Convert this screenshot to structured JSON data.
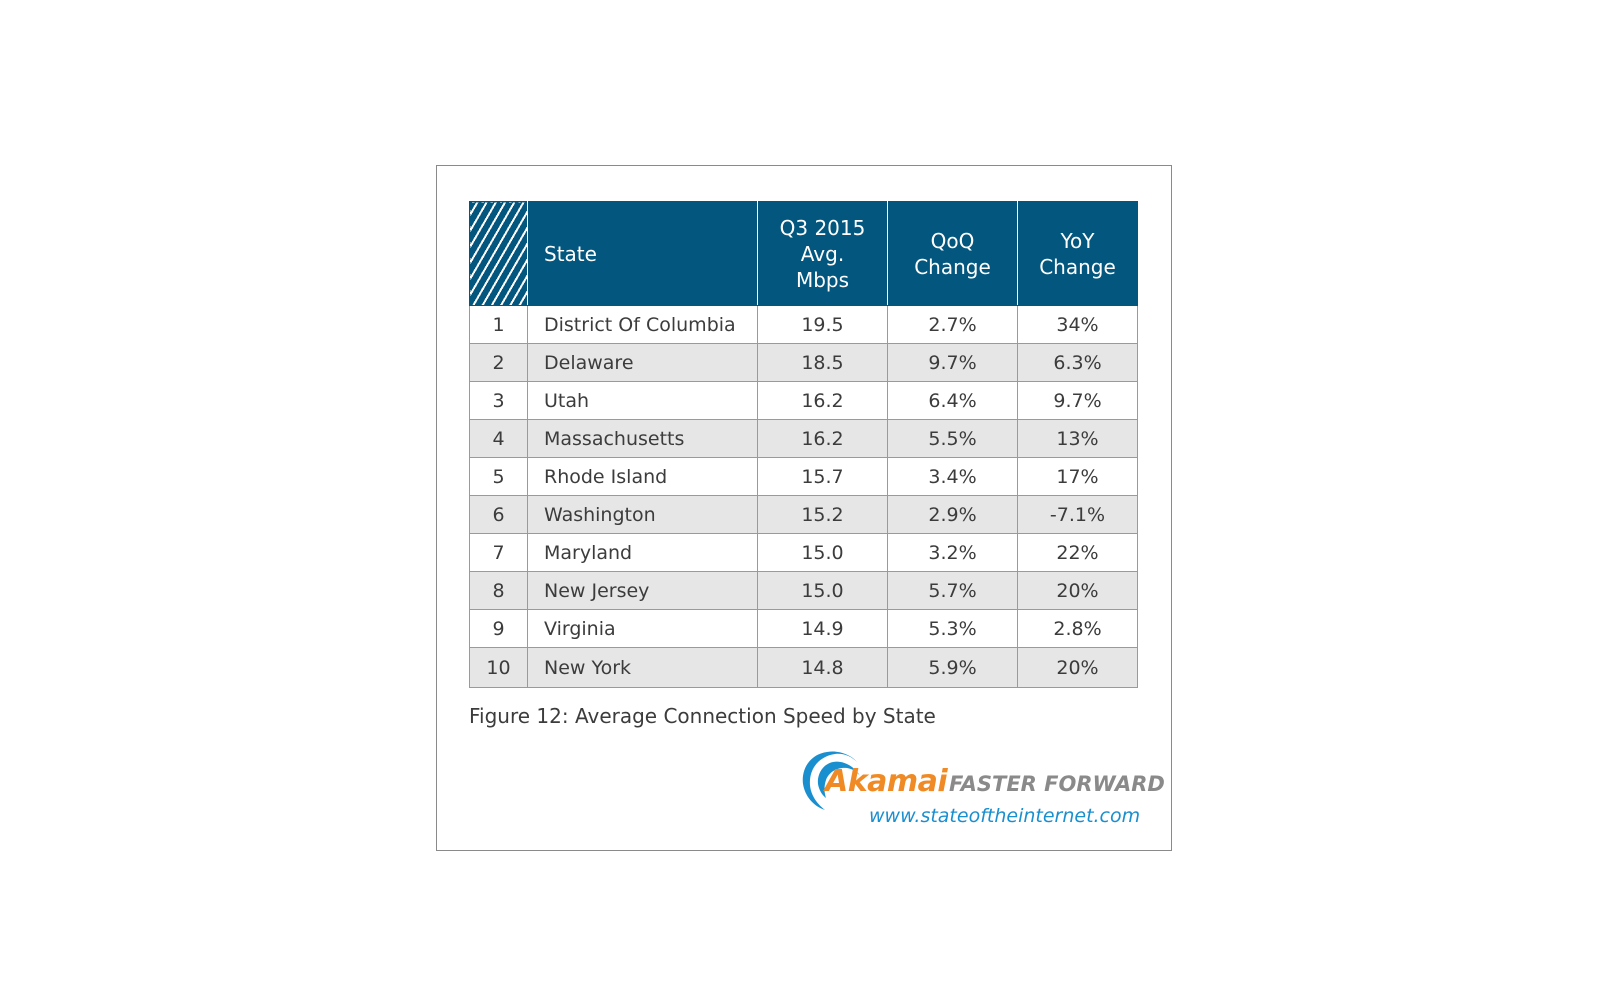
{
  "chart_data": {
    "type": "table",
    "title": "Figure 12: Average Connection Speed by State",
    "columns": [
      "",
      "State",
      "Q3 2015 Avg. Mbps",
      "QoQ Change",
      "YoY Change"
    ],
    "header": {
      "state": "State",
      "avg_line1": "Q3 2015",
      "avg_line2": "Avg.",
      "avg_line3": "Mbps",
      "qoq_line1": "QoQ",
      "qoq_line2": "Change",
      "yoy_line1": "YoY",
      "yoy_line2": "Change"
    },
    "rows": [
      {
        "rank": "1",
        "state": "District Of Columbia",
        "avg_mbps": "19.5",
        "qoq": "2.7%",
        "yoy": "34%"
      },
      {
        "rank": "2",
        "state": "Delaware",
        "avg_mbps": "18.5",
        "qoq": "9.7%",
        "yoy": "6.3%"
      },
      {
        "rank": "3",
        "state": "Utah",
        "avg_mbps": "16.2",
        "qoq": "6.4%",
        "yoy": "9.7%"
      },
      {
        "rank": "4",
        "state": "Massachusetts",
        "avg_mbps": "16.2",
        "qoq": "5.5%",
        "yoy": "13%"
      },
      {
        "rank": "5",
        "state": "Rhode Island",
        "avg_mbps": "15.7",
        "qoq": "3.4%",
        "yoy": "17%"
      },
      {
        "rank": "6",
        "state": "Washington",
        "avg_mbps": "15.2",
        "qoq": "2.9%",
        "yoy": "-7.1%"
      },
      {
        "rank": "7",
        "state": "Maryland",
        "avg_mbps": "15.0",
        "qoq": "3.2%",
        "yoy": "22%"
      },
      {
        "rank": "8",
        "state": "New Jersey",
        "avg_mbps": "15.0",
        "qoq": "5.7%",
        "yoy": "20%"
      },
      {
        "rank": "9",
        "state": "Virginia",
        "avg_mbps": "14.9",
        "qoq": "5.3%",
        "yoy": "2.8%"
      },
      {
        "rank": "10",
        "state": "New York",
        "avg_mbps": "14.8",
        "qoq": "5.9%",
        "yoy": "20%"
      }
    ]
  },
  "logo": {
    "brand": "Akamai",
    "tagline": "FASTER FORWARD",
    "url": "www.stateoftheinternet.com"
  },
  "colors": {
    "header_bg": "#03577f",
    "stripe_bg": "#e6e6e6",
    "brand_orange": "#f08a24",
    "wave_blue": "#1a8fd0",
    "tagline_gray": "#8a8a8a"
  },
  "icons": {
    "logo_mark": "akamai-wave-icon"
  }
}
